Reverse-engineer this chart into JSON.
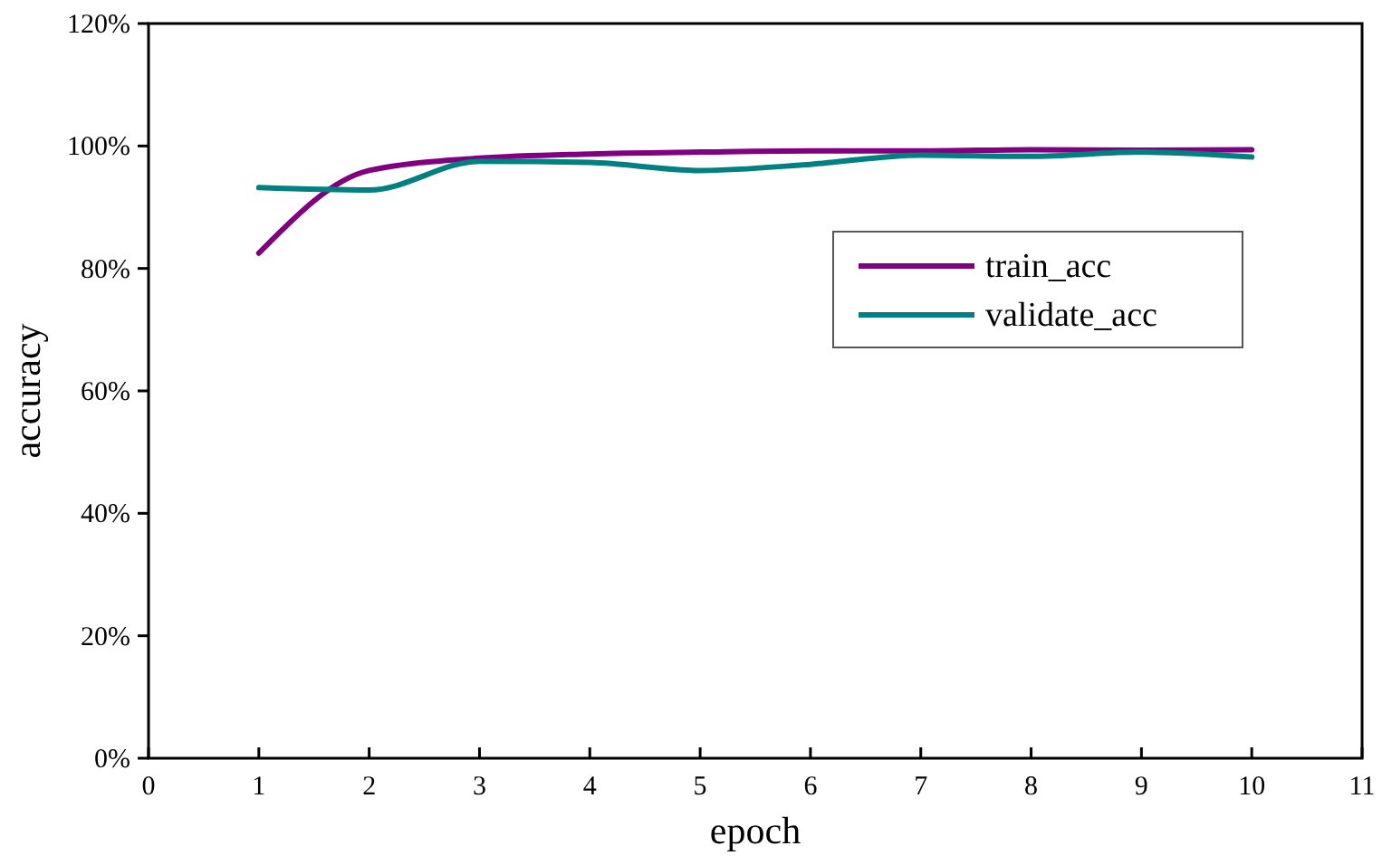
{
  "chart_data": {
    "type": "line",
    "xlabel": "epoch",
    "ylabel": "accuracy",
    "x": [
      1,
      2,
      3,
      4,
      5,
      6,
      7,
      8,
      9,
      10
    ],
    "series": [
      {
        "name": "train_acc",
        "color": "#800080",
        "values": [
          82.5,
          96,
          98,
          98.7,
          99,
          99.2,
          99.2,
          99.4,
          99.3,
          99.4
        ]
      },
      {
        "name": "validate_acc",
        "color": "#008080",
        "values": [
          93.2,
          92.8,
          97.5,
          97.3,
          96,
          97,
          98.5,
          98.3,
          99,
          98.2
        ]
      }
    ],
    "xlim": [
      0,
      11
    ],
    "xticks": [
      0,
      1,
      2,
      3,
      4,
      5,
      6,
      7,
      8,
      9,
      10,
      11
    ],
    "ylim": [
      0,
      120
    ],
    "yticks": [
      {
        "value": 0,
        "label": "0%"
      },
      {
        "value": 20,
        "label": "20%"
      },
      {
        "value": 40,
        "label": "40%"
      },
      {
        "value": 60,
        "label": "60%"
      },
      {
        "value": 80,
        "label": "80%"
      },
      {
        "value": 100,
        "label": "100%"
      },
      {
        "value": 120,
        "label": "120%"
      }
    ],
    "legend": "right",
    "marker": "none",
    "line_style": "solid",
    "grid": false
  }
}
